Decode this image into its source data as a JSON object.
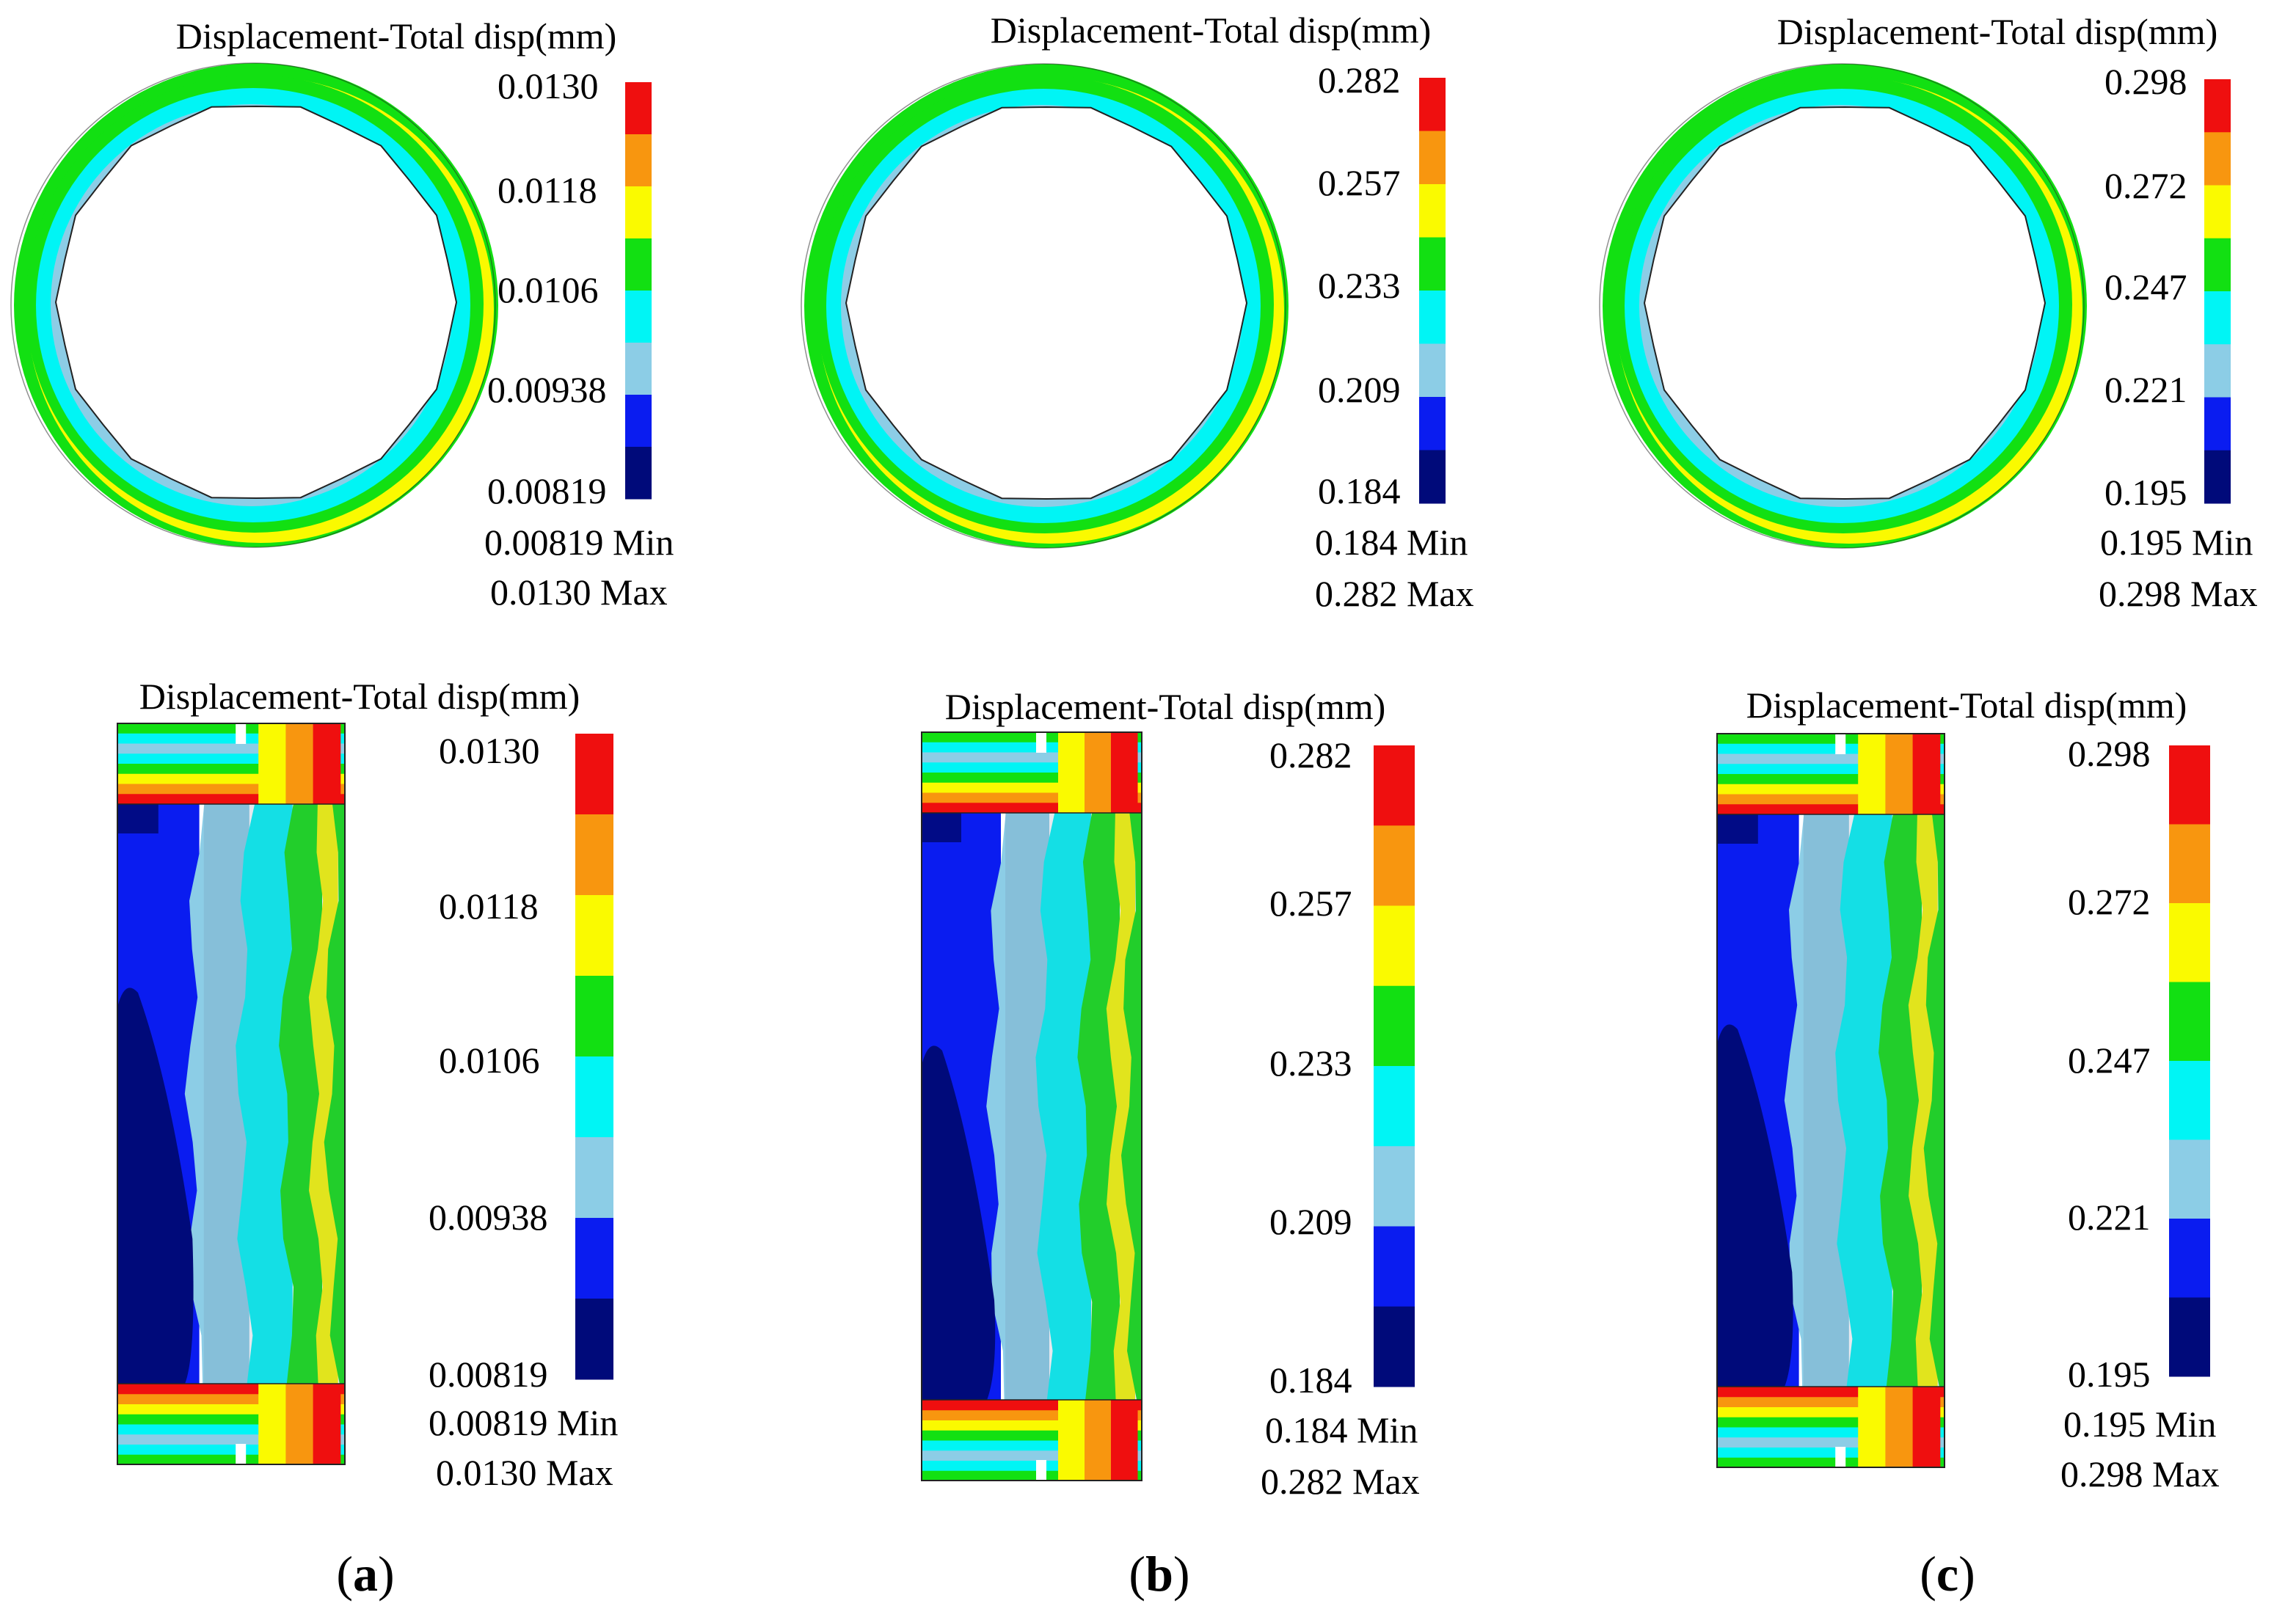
{
  "figure": {
    "title": "Displacement-Total disp(mm)",
    "band_colors": [
      "#000a7a",
      "#0a1cf0",
      "#8ccde6",
      "#00f5f5",
      "#12e012",
      "#fafa00",
      "#f8960f",
      "#ef0f0f"
    ],
    "shape_colors": {
      "outline": "#222222",
      "inner_dark": "#0b1280",
      "cross_section_shadow": "#6d7fa0"
    }
  },
  "panels": [
    {
      "id": "a",
      "caption": "a",
      "scale": {
        "ticks": [
          "0.0130",
          "0.0118",
          "0.0106",
          "0.00938",
          "0.00819"
        ],
        "min_label": "0.00819 Min",
        "max_label": "0.0130 Max"
      }
    },
    {
      "id": "b",
      "caption": "b",
      "scale": {
        "ticks": [
          "0.282",
          "0.257",
          "0.233",
          "0.209",
          "0.184"
        ],
        "min_label": "0.184 Min",
        "max_label": "0.282 Max"
      }
    },
    {
      "id": "c",
      "caption": "c",
      "scale": {
        "ticks": [
          "0.298",
          "0.272",
          "0.247",
          "0.221",
          "0.195"
        ],
        "min_label": "0.195 Min",
        "max_label": "0.298 Max"
      }
    }
  ]
}
